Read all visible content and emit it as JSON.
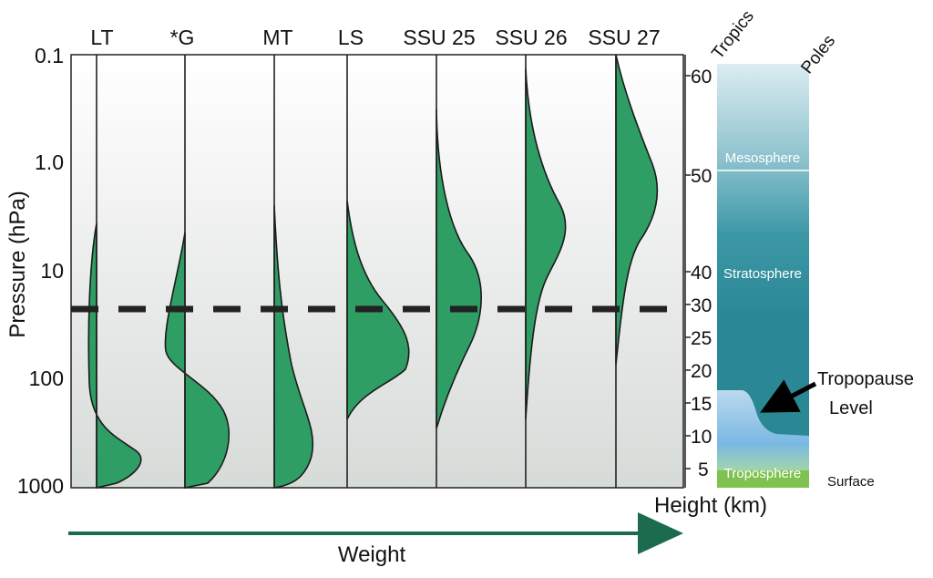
{
  "chart_data": {
    "type": "diagram",
    "y_axis": {
      "label": "Pressure (hPa)",
      "scale": "log",
      "ticks": [
        "0.1",
        "1.0",
        "10",
        "100",
        "1000"
      ]
    },
    "x_axis": {
      "label": "Weight"
    },
    "channels": [
      {
        "name": "LT"
      },
      {
        "name": "*G"
      },
      {
        "name": "MT"
      },
      {
        "name": "LS"
      },
      {
        "name": "SSU 25"
      },
      {
        "name": "SSU 26"
      },
      {
        "name": "SSU 27"
      }
    ],
    "height_axis": {
      "label": "Height (km)",
      "ticks": [
        "60",
        "50",
        "40",
        "30",
        "25",
        "20",
        "15",
        "10",
        "5"
      ]
    },
    "atmosphere_panel": {
      "left_label": "Tropics",
      "right_label": "Poles",
      "layers": [
        "Mesosphere",
        "Stratosphere",
        "Troposphere"
      ],
      "tropopause_label": "Tropopause Level",
      "surface_label": "Surface"
    },
    "colors": {
      "fill": "#2e9e64",
      "arrow": "#1b6b4c",
      "dashed_line": "#222222",
      "stratosphere": "#2e8a96",
      "troposphere": "#8cc95a"
    }
  }
}
